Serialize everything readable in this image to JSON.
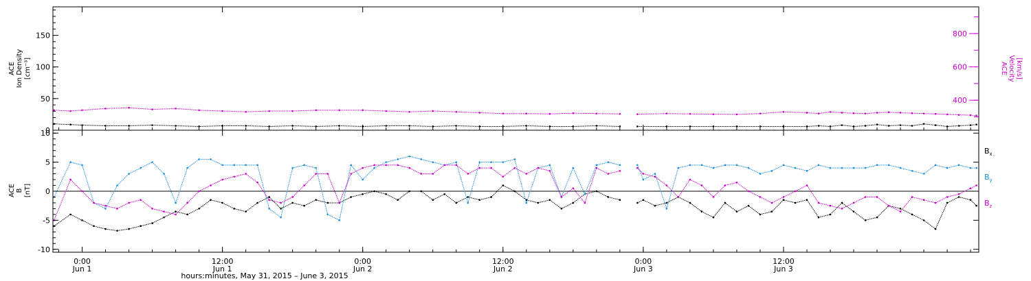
{
  "colors": {
    "black": "#000000",
    "magenta": "#cc00cc",
    "blue": "#1a8fe0"
  },
  "chart_data": [
    {
      "type": "scatter",
      "panel": "top",
      "left_axis": {
        "label_lines": [
          "ACE",
          "Ion Density",
          "[cm⁻³]"
        ],
        "ylim": [
          0,
          195
        ],
        "ticks": [
          0,
          50,
          100,
          150
        ]
      },
      "right_axis": {
        "label_lines": [
          "ACE",
          "Velocity",
          "[km/s]"
        ],
        "ylim": [
          220,
          960
        ],
        "ticks": [
          400,
          600,
          800
        ],
        "color": "#cc00cc"
      },
      "x_hours_range": [
        -2.5,
        76.7
      ],
      "series": [
        {
          "name": "Ion Density",
          "axis": "left",
          "color": "#000000",
          "x": [
            -2.4,
            -1,
            0,
            2,
            4,
            6,
            8,
            10,
            12,
            14,
            16,
            18,
            20,
            22,
            24,
            26,
            28,
            30,
            32,
            34,
            36,
            38,
            40,
            42,
            44,
            46,
            47.5,
            50,
            52,
            54,
            56,
            58,
            60,
            62,
            63,
            64,
            65,
            66,
            67,
            68,
            69,
            70,
            71,
            72,
            73,
            74,
            75,
            76,
            76.5
          ],
          "y": [
            10,
            9,
            8,
            7,
            7,
            8,
            7,
            6,
            7,
            7,
            6,
            7,
            6,
            7,
            6,
            7,
            7,
            6,
            7,
            6,
            6,
            7,
            6,
            6,
            7,
            6,
            6,
            6,
            6,
            6,
            6,
            6,
            6,
            6,
            7,
            6,
            8,
            6,
            7,
            9,
            7,
            8,
            7,
            10,
            8,
            6,
            7,
            8,
            9
          ]
        },
        {
          "name": "Velocity",
          "axis": "right",
          "color": "#cc00cc",
          "x": [
            -2.4,
            -1,
            0,
            2,
            4,
            6,
            8,
            10,
            12,
            14,
            16,
            18,
            20,
            22,
            24,
            26,
            28,
            30,
            32,
            34,
            36,
            38,
            40,
            42,
            44,
            46,
            47.5,
            50,
            52,
            54,
            56,
            58,
            60,
            62,
            63,
            64,
            65,
            66,
            67,
            68,
            69,
            70,
            71,
            72,
            73,
            74,
            75,
            76,
            76.5
          ],
          "y": [
            340,
            335,
            340,
            350,
            355,
            345,
            350,
            340,
            335,
            330,
            335,
            335,
            340,
            340,
            340,
            335,
            330,
            335,
            330,
            325,
            320,
            320,
            318,
            322,
            320,
            318,
            316,
            320,
            318,
            316,
            315,
            320,
            330,
            325,
            320,
            330,
            325,
            322,
            320,
            325,
            328,
            325,
            322,
            320,
            318,
            315,
            312,
            310,
            308
          ]
        }
      ]
    },
    {
      "type": "scatter",
      "panel": "bottom",
      "left_axis": {
        "label_lines": [
          "ACE",
          "B",
          "[nT]"
        ],
        "ylim": [
          -10.5,
          10.5
        ],
        "ticks": [
          -10,
          -5,
          0,
          5,
          10
        ]
      },
      "x_hours_range": [
        -2.5,
        76.7
      ],
      "legend": [
        "Bx",
        "By",
        "Bz"
      ],
      "legend_position": "right",
      "series": [
        {
          "name": "Bx",
          "color": "#000000",
          "x": [
            -2.4,
            -1,
            0,
            1,
            2,
            3,
            4,
            5,
            6,
            7,
            8,
            9,
            10,
            11,
            12,
            13,
            14,
            15,
            16,
            17,
            18,
            19,
            20,
            21,
            22,
            23,
            24,
            25,
            26,
            27,
            28,
            29,
            30,
            31,
            32,
            33,
            34,
            35,
            36,
            37,
            38,
            39,
            40,
            41,
            42,
            43,
            44,
            45,
            46,
            47.5,
            48,
            49,
            50,
            51,
            52,
            53,
            54,
            55,
            56,
            57,
            58,
            59,
            60,
            61,
            62,
            63,
            64,
            65,
            66,
            67,
            68,
            69,
            70,
            71,
            72,
            73,
            74,
            75,
            76,
            76.5
          ],
          "y": [
            -6,
            -4,
            -5,
            -6,
            -6.5,
            -6.8,
            -6.5,
            -6,
            -5.5,
            -4.5,
            -3.5,
            -4,
            -3,
            -1.5,
            -2,
            -3,
            -3.5,
            -2,
            -1,
            -3,
            -2,
            -2.5,
            -1.5,
            -2,
            -2,
            -1,
            -0.5,
            0,
            -0.5,
            -1.5,
            0,
            0,
            -1.5,
            -0.5,
            -2,
            -1,
            -1.5,
            -1,
            1,
            0,
            -1.5,
            -2,
            -1.5,
            -3,
            -2,
            -0.5,
            0,
            -1,
            -1.5,
            -2,
            -1.5,
            -2.5,
            -2,
            -1,
            -2,
            -3.5,
            -4.5,
            -2,
            -3.5,
            -2.5,
            -4,
            -3.5,
            -1.5,
            -2,
            -1.5,
            -4.5,
            -4,
            -2,
            -3.5,
            -5,
            -4.5,
            -2.5,
            -3,
            -4,
            -5,
            -6.5,
            -2,
            -1,
            -1.5,
            -2.5
          ]
        },
        {
          "name": "By",
          "color": "#1a8fe0",
          "x": [
            -2.4,
            -1,
            0,
            1,
            2,
            3,
            4,
            5,
            6,
            7,
            8,
            9,
            10,
            11,
            12,
            13,
            14,
            15,
            16,
            17,
            18,
            19,
            20,
            21,
            22,
            23,
            24,
            25,
            26,
            27,
            28,
            29,
            30,
            31,
            32,
            33,
            34,
            35,
            36,
            37,
            38,
            39,
            40,
            41,
            42,
            43,
            44,
            45,
            46,
            47.5,
            48,
            49,
            50,
            51,
            52,
            53,
            54,
            55,
            56,
            57,
            58,
            59,
            60,
            61,
            62,
            63,
            64,
            65,
            66,
            67,
            68,
            69,
            70,
            71,
            72,
            73,
            74,
            75,
            76,
            76.5
          ],
          "y": [
            -1,
            5,
            4.5,
            -2,
            -3,
            1,
            3,
            4,
            5,
            3,
            -2,
            4,
            5.5,
            5.5,
            4.5,
            4.5,
            4.5,
            4.5,
            -3,
            -4.5,
            4,
            4.5,
            4,
            -4,
            -5,
            4.5,
            2,
            4,
            5,
            5.5,
            6,
            5.5,
            5,
            4.5,
            5,
            -2,
            5,
            5,
            5,
            5.5,
            -2,
            4,
            4.5,
            -1,
            4,
            -0.5,
            4.5,
            5,
            4.5,
            4.5,
            2,
            3,
            -3,
            4,
            4.5,
            4.5,
            4,
            4.5,
            4.5,
            4,
            3,
            3.5,
            4.5,
            4,
            3.5,
            4.5,
            4,
            4,
            4,
            4,
            4.5,
            4.5,
            4,
            3.5,
            3,
            4.5,
            4,
            4.5,
            4,
            4
          ]
        },
        {
          "name": "Bz",
          "color": "#cc00cc",
          "x": [
            -2.4,
            -1,
            0,
            1,
            2,
            3,
            4,
            5,
            6,
            7,
            8,
            9,
            10,
            11,
            12,
            13,
            14,
            15,
            16,
            17,
            18,
            19,
            20,
            21,
            22,
            23,
            24,
            25,
            26,
            27,
            28,
            29,
            30,
            31,
            32,
            33,
            34,
            35,
            36,
            37,
            38,
            39,
            40,
            41,
            42,
            43,
            44,
            45,
            46,
            47.5,
            48,
            49,
            50,
            51,
            52,
            53,
            54,
            55,
            56,
            57,
            58,
            59,
            60,
            61,
            62,
            63,
            64,
            65,
            66,
            67,
            68,
            69,
            70,
            71,
            72,
            73,
            74,
            75,
            76,
            76.5
          ],
          "y": [
            -5,
            2,
            0,
            -2,
            -2.5,
            -3,
            -2,
            -1.5,
            -3,
            -3.5,
            -4,
            -2,
            0,
            1,
            2,
            2.5,
            3,
            1.5,
            -1.5,
            -2,
            -1,
            1,
            3,
            3,
            -2,
            3,
            4,
            4.5,
            4.5,
            4.5,
            4,
            3,
            3,
            4.5,
            4.5,
            3,
            4,
            4,
            2.5,
            4,
            3,
            4,
            3.5,
            -1,
            0.5,
            -2,
            4,
            3,
            3.5,
            4,
            3,
            2.5,
            1,
            -1,
            2,
            1,
            -1,
            1,
            1.5,
            0,
            -1,
            -2,
            -1,
            0,
            1,
            -2,
            -2.5,
            -3,
            -2,
            -1,
            -1,
            -2.5,
            -3.5,
            -1,
            -1.5,
            -2,
            -1,
            -0.5,
            0.5,
            1
          ]
        }
      ]
    }
  ],
  "x_axis": {
    "ticks": [
      {
        "h": 0,
        "time": "0:00",
        "day": "Jun 1"
      },
      {
        "h": 12,
        "time": "12:00",
        "day": "Jun 1"
      },
      {
        "h": 24,
        "time": "0:00",
        "day": "Jun 2"
      },
      {
        "h": 36,
        "time": "12:00",
        "day": "Jun 2"
      },
      {
        "h": 48,
        "time": "0:00",
        "day": "Jun 3"
      },
      {
        "h": 60,
        "time": "12:00",
        "day": "Jun 3"
      }
    ],
    "minor_step_hours": 2,
    "label": "hours:minutes, May 31, 2015 – June  3, 2015"
  }
}
